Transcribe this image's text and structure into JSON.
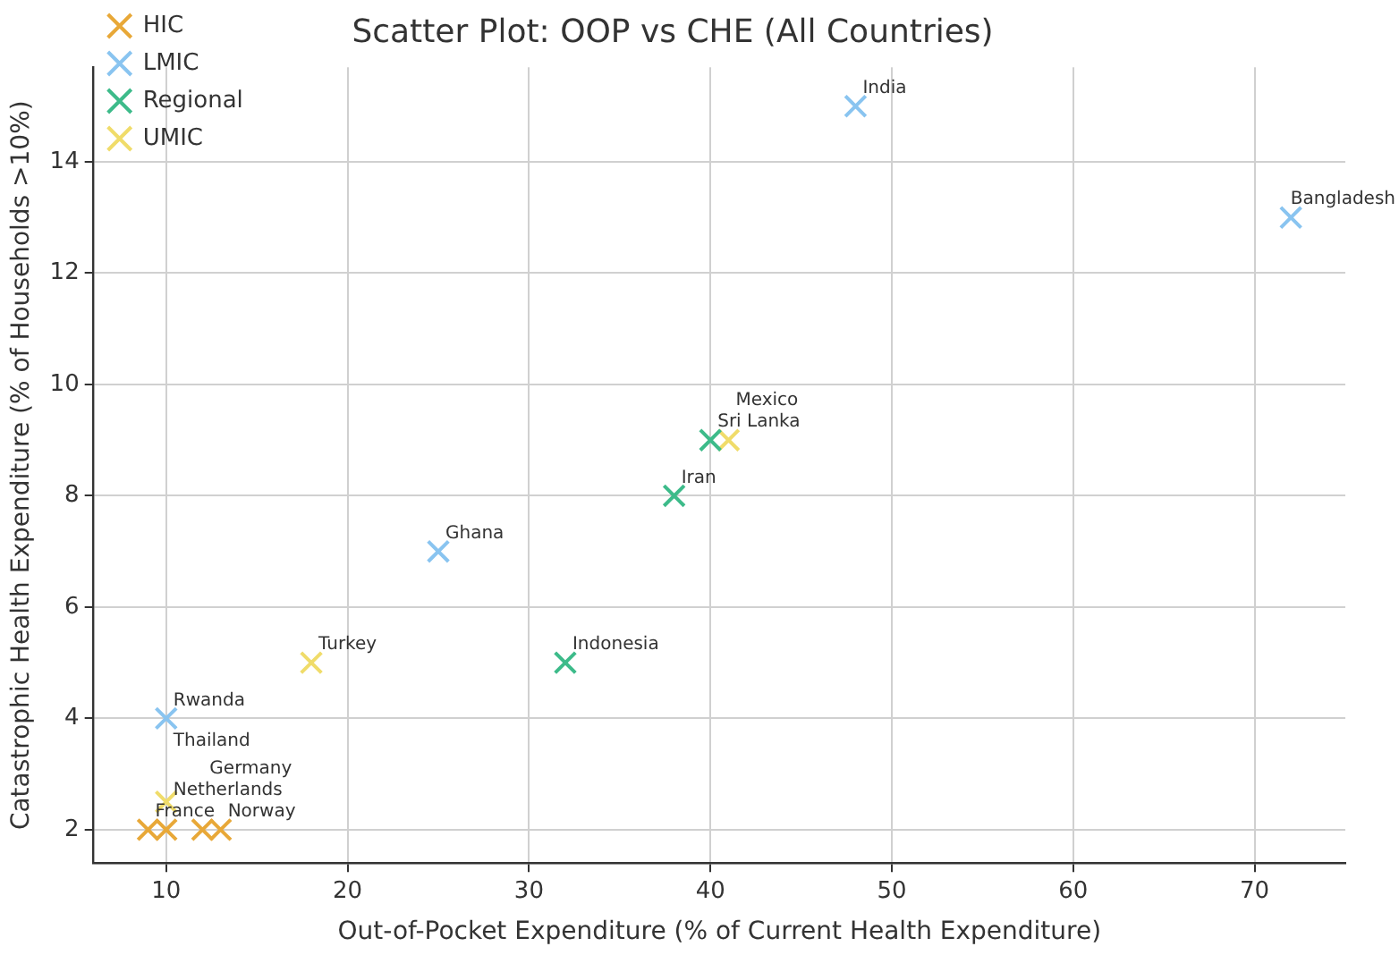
{
  "chart_data": {
    "type": "scatter",
    "title": "Scatter Plot: OOP vs CHE (All Countries)",
    "xlabel": "Out-of-Pocket Expenditure (% of Current Health Expenditure)",
    "ylabel": "Catastrophic Health Expenditure (% of Households >10%)",
    "series": [
      {
        "name": "HIC",
        "color": "#e8a838",
        "x": [
          9,
          10,
          12,
          13
        ],
        "values": [
          2,
          2,
          2,
          2
        ]
      },
      {
        "name": "LMIC",
        "color": "#89c4f0",
        "x": [
          48,
          72,
          25,
          10
        ],
        "values": [
          15,
          13,
          7,
          4
        ]
      },
      {
        "name": "Regional",
        "color": "#3dbb8a",
        "x": [
          40,
          38,
          32
        ],
        "values": [
          9,
          8,
          5
        ]
      },
      {
        "name": "UMIC",
        "color": "#f0dc6a",
        "x": [
          41,
          18,
          10
        ],
        "values": [
          9,
          5,
          2.5
        ]
      }
    ],
    "annotations": [
      {
        "text": "France",
        "x": 9,
        "y": 2
      },
      {
        "text": "Netherlands",
        "x": 10,
        "y": 2
      },
      {
        "text": "Germany",
        "x": 12,
        "y": 2
      },
      {
        "text": "Norway",
        "x": 13,
        "y": 2
      },
      {
        "text": "India",
        "x": 48,
        "y": 15
      },
      {
        "text": "Bangladesh",
        "x": 72,
        "y": 13
      },
      {
        "text": "Ghana",
        "x": 25,
        "y": 7
      },
      {
        "text": "Rwanda",
        "x": 10,
        "y": 4
      },
      {
        "text": "Sri Lanka",
        "x": 40,
        "y": 9
      },
      {
        "text": "Iran",
        "x": 38,
        "y": 8
      },
      {
        "text": "Indonesia",
        "x": 32,
        "y": 5
      },
      {
        "text": "Mexico",
        "x": 41,
        "y": 9
      },
      {
        "text": "Turkey",
        "x": 18,
        "y": 5
      },
      {
        "text": "Thailand",
        "x": 10,
        "y": 2.5
      }
    ],
    "xlim": [
      6,
      75
    ],
    "xticks": [
      10,
      20,
      30,
      40,
      50,
      60,
      70
    ],
    "ylim": [
      1.4,
      15.7
    ],
    "yticks": [
      2,
      4,
      6,
      8,
      10,
      12,
      14
    ],
    "grid": true,
    "legend": "top left",
    "marker": "cross"
  }
}
